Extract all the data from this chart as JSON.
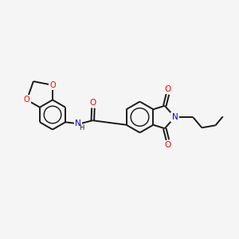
{
  "background_color": "#f5f5f5",
  "bond_color": "#1a1a1a",
  "atom_colors": {
    "O": "#ff0000",
    "N": "#0000cc",
    "C": "#1a1a1a"
  },
  "bond_width": 1.4,
  "figsize": [
    3.0,
    3.0
  ],
  "dpi": 100
}
